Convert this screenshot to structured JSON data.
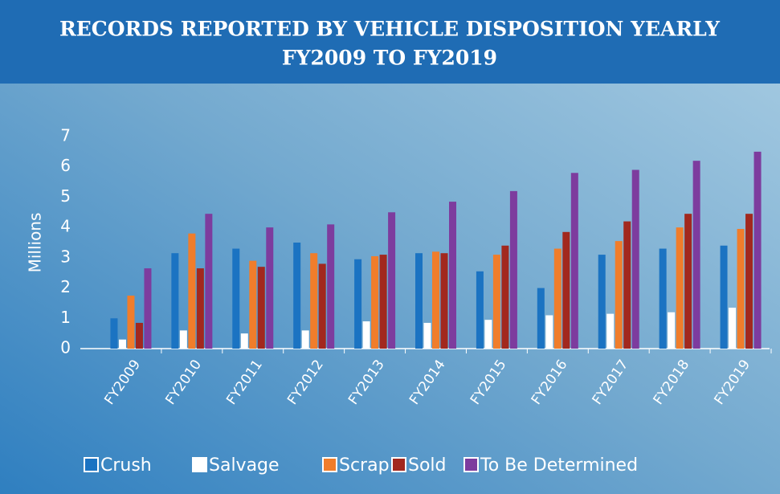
{
  "chart_data": {
    "type": "bar",
    "title": [
      "RECORDS REPORTED BY VEHICLE DISPOSITION YEARLY",
      "FY2009 TO FY2019"
    ],
    "y_label": "Millions",
    "categories": [
      "FY2009",
      "FY2010",
      "FY2011",
      "FY2012",
      "FY2013",
      "FY2014",
      "FY2015",
      "FY2016",
      "FY2017",
      "FY2018",
      "FY2019"
    ],
    "series": [
      {
        "name": "Crush",
        "color": "#1b73c2",
        "values": [
          1.0,
          3.15,
          3.3,
          3.5,
          2.95,
          3.15,
          2.55,
          2.0,
          3.1,
          3.3,
          3.4
        ]
      },
      {
        "name": "Salvage",
        "color": "#ffffff",
        "values": [
          0.3,
          0.6,
          0.5,
          0.6,
          0.9,
          0.85,
          0.95,
          1.1,
          1.15,
          1.2,
          1.35
        ]
      },
      {
        "name": "Scrap",
        "color": "#f07d2b",
        "values": [
          1.75,
          3.8,
          2.9,
          3.15,
          3.05,
          3.2,
          3.1,
          3.3,
          3.55,
          4.0,
          3.95
        ]
      },
      {
        "name": "Sold",
        "color": "#a2281e",
        "values": [
          0.85,
          2.65,
          2.7,
          2.8,
          3.1,
          3.15,
          3.4,
          3.85,
          4.2,
          4.45,
          4.45
        ]
      },
      {
        "name": "To Be Determined",
        "color": "#7d3c9e",
        "values": [
          2.65,
          4.45,
          4.0,
          4.1,
          4.5,
          4.85,
          5.2,
          5.8,
          5.9,
          6.2,
          6.5
        ]
      }
    ],
    "ylim": [
      0,
      7
    ],
    "yticks": [
      0,
      1,
      2,
      3,
      4,
      5,
      6,
      7
    ],
    "grid": false
  }
}
